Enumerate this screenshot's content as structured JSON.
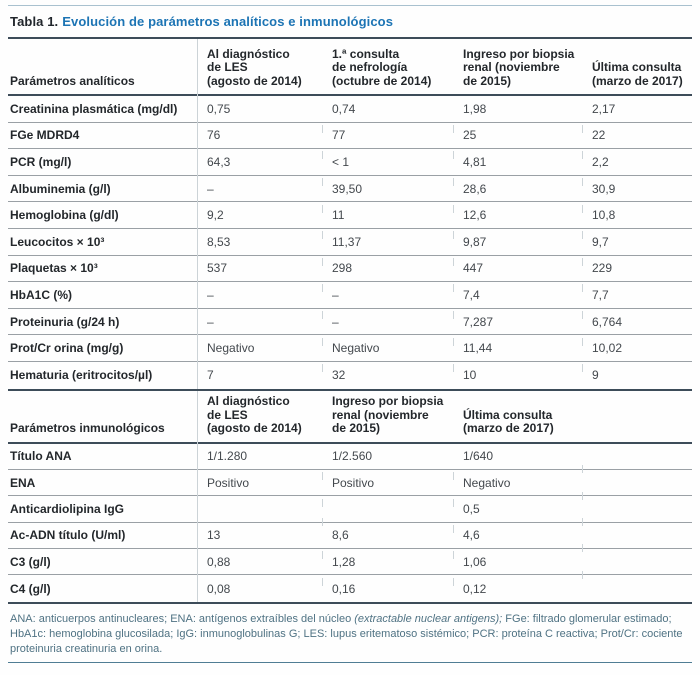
{
  "title": {
    "prefix": "Tabla 1.",
    "text": "Evolución de parámetros analíticos e inmunológicos"
  },
  "analytical": {
    "section_label": "Parámetros analíticos",
    "columns": [
      "Al diagnóstico\nde LES\n(agosto de 2014)",
      "1.ª consulta\nde nefrología\n(octubre de 2014)",
      "Ingreso por biopsia\nrenal (noviembre\nde 2015)",
      "Última consulta\n(marzo de 2017)"
    ],
    "rows": [
      {
        "label": "Creatinina plasmática (mg/dl)",
        "values": [
          "0,75",
          "0,74",
          "1,98",
          "2,17"
        ]
      },
      {
        "label": "FGe MDRD4",
        "values": [
          "76",
          "77",
          "25",
          "22"
        ]
      },
      {
        "label": "PCR (mg/l)",
        "values": [
          "64,3",
          "< 1",
          "4,81",
          "2,2"
        ]
      },
      {
        "label": "Albuminemia (g/l)",
        "values": [
          "–",
          "39,50",
          "28,6",
          "30,9"
        ]
      },
      {
        "label": "Hemoglobina (g/dl)",
        "values": [
          "9,2",
          "11",
          "12,6",
          "10,8"
        ]
      },
      {
        "label": "Leucocitos × 10³",
        "values": [
          "8,53",
          "11,37",
          "9,87",
          "9,7"
        ]
      },
      {
        "label": "Plaquetas × 10³",
        "values": [
          "537",
          "298",
          "447",
          "229"
        ]
      },
      {
        "label": "HbA1C (%)",
        "values": [
          "–",
          "–",
          "7,4",
          "7,7"
        ]
      },
      {
        "label": "Proteinuria (g/24 h)",
        "values": [
          "–",
          "–",
          "7,287",
          "6,764"
        ]
      },
      {
        "label": "Prot/Cr orina (mg/g)",
        "values": [
          "Negativo",
          "Negativo",
          "11,44",
          "10,02"
        ]
      },
      {
        "label": "Hematuria (eritrocitos/µl)",
        "values": [
          "7",
          "32",
          "10",
          "9"
        ]
      }
    ]
  },
  "immunological": {
    "section_label": "Parámetros inmunológicos",
    "columns": [
      "Al diagnóstico\nde LES\n(agosto de 2014)",
      "Ingreso por biopsia\nrenal (noviembre\nde 2015)",
      "Última consulta\n(marzo de 2017)"
    ],
    "rows": [
      {
        "label": "Título ANA",
        "values": [
          "1/1.280",
          "1/2.560",
          "1/640"
        ]
      },
      {
        "label": "ENA",
        "values": [
          "Positivo",
          "Positivo",
          "Negativo"
        ]
      },
      {
        "label": "Anticardiolipina IgG",
        "values": [
          "",
          "",
          "0,5"
        ]
      },
      {
        "label": "Ac-ADN título (U/ml)",
        "values": [
          "13",
          "8,6",
          "4,6"
        ]
      },
      {
        "label": "C3 (g/l)",
        "values": [
          "0,88",
          "1,28",
          "1,06"
        ]
      },
      {
        "label": "C4 (g/l)",
        "values": [
          "0,08",
          "0,16",
          "0,12"
        ]
      }
    ]
  },
  "footnote": {
    "part1": "ANA: anticuerpos antinucleares; ENA: antígenos extraíbles del núcleo ",
    "italic": "(extractable nuclear antigens);",
    "part2": " FGe: filtrado glomerular estimado; HbA1c: hemoglobina glucosilada; IgG: inmunoglobulinas G; LES: lupus eritematoso sistémico; PCR: proteína C reactiva; Prot/Cr: cociente proteinuria creatinuria en orina."
  },
  "colors": {
    "accent_blue": "#1c74b4",
    "heavy_line": "#3d4c59",
    "row_divider": "#9aa0a5",
    "footnote_teal": "#4f7283",
    "bottom_rule_teal": "#4f7d94"
  }
}
